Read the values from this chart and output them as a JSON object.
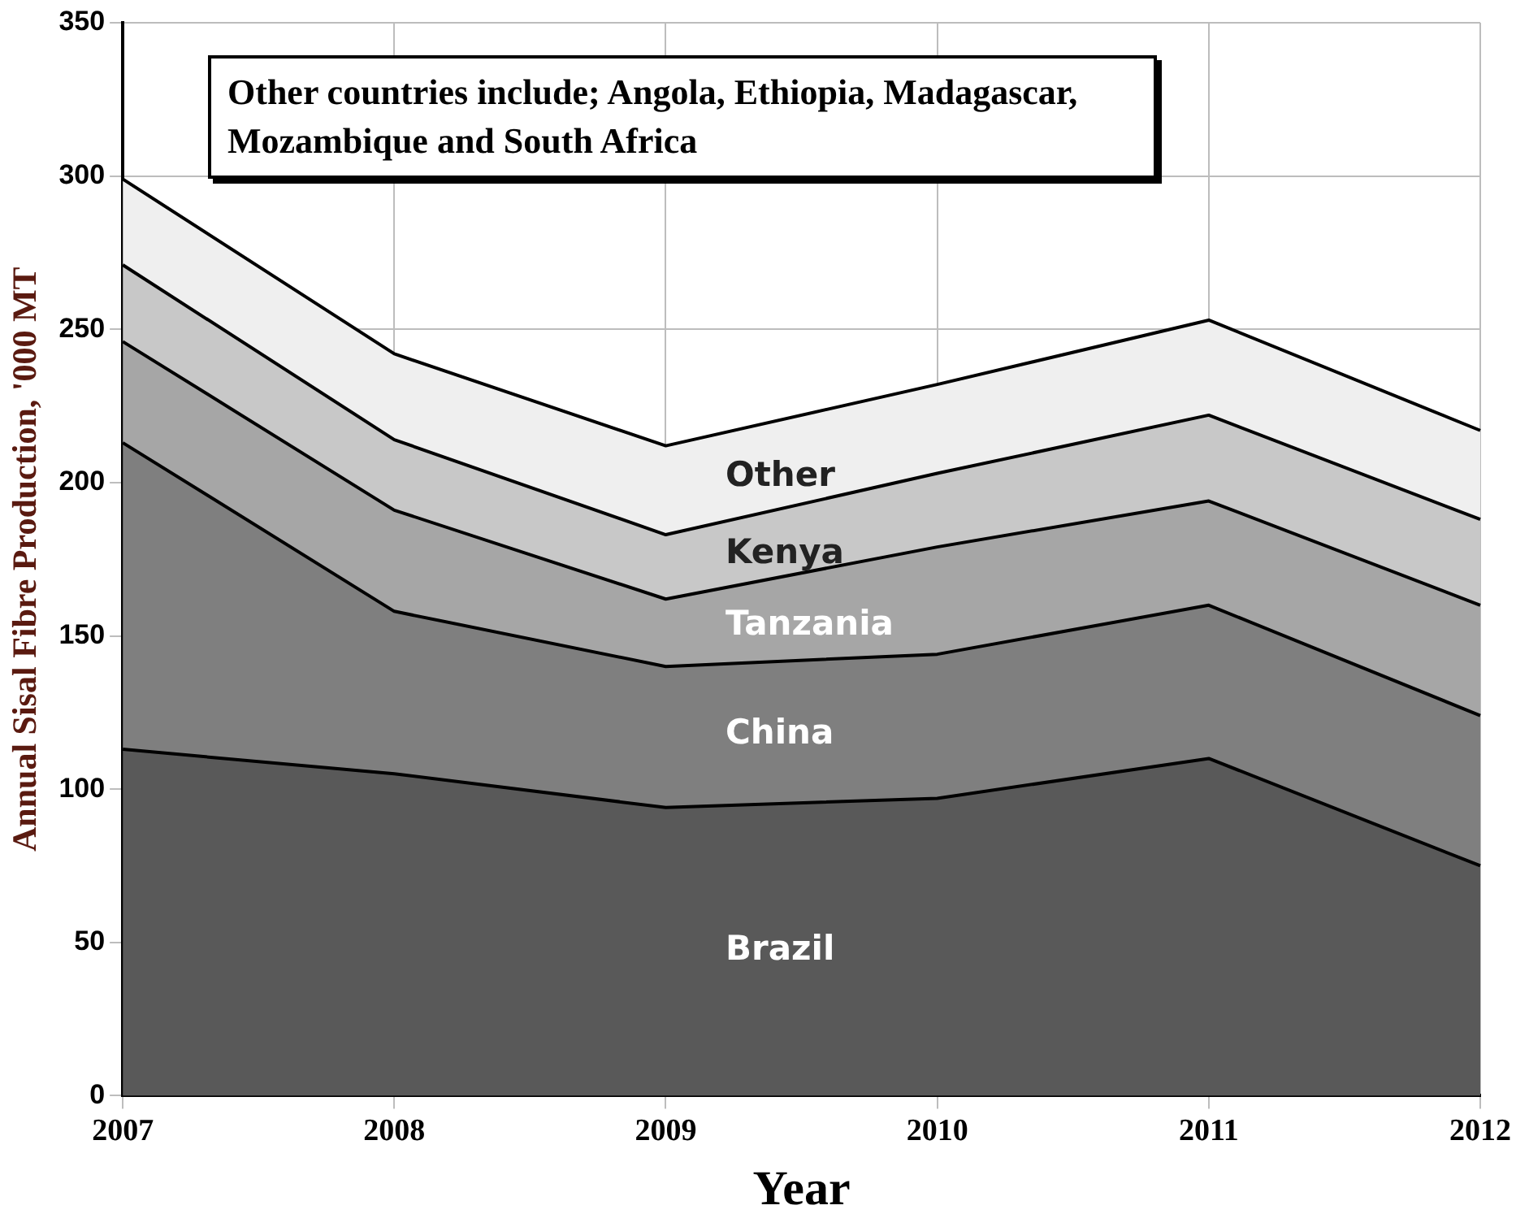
{
  "chart_data": {
    "type": "area",
    "stacked": true,
    "xlabel": "Year",
    "ylabel": "Annual Sisal Fibre Production, '000 MT",
    "categories": [
      "2007",
      "2008",
      "2009",
      "2010",
      "2011",
      "2012"
    ],
    "series": [
      {
        "name": "Brazil",
        "color": "#595959",
        "values": [
          113,
          105,
          94,
          97,
          110,
          75
        ]
      },
      {
        "name": "China",
        "color": "#7f7f7f",
        "values": [
          100,
          53,
          46,
          47,
          50,
          49
        ]
      },
      {
        "name": "Tanzania",
        "color": "#a6a6a6",
        "values": [
          33,
          33,
          22,
          35,
          34,
          36
        ]
      },
      {
        "name": "Kenya",
        "color": "#c8c8c8",
        "values": [
          25,
          23,
          21,
          24,
          28,
          28
        ]
      },
      {
        "name": "Other",
        "color": "#efefef",
        "values": [
          28,
          28,
          29,
          29,
          31,
          29
        ]
      }
    ],
    "ylim": [
      0,
      350
    ],
    "yticks": [
      0,
      50,
      100,
      150,
      200,
      250,
      300,
      350
    ],
    "grid": true,
    "legend": false,
    "annotations": [
      "Other countries include; Angola, Ethiopia, Madagascar, Mozambique and South Africa"
    ]
  }
}
